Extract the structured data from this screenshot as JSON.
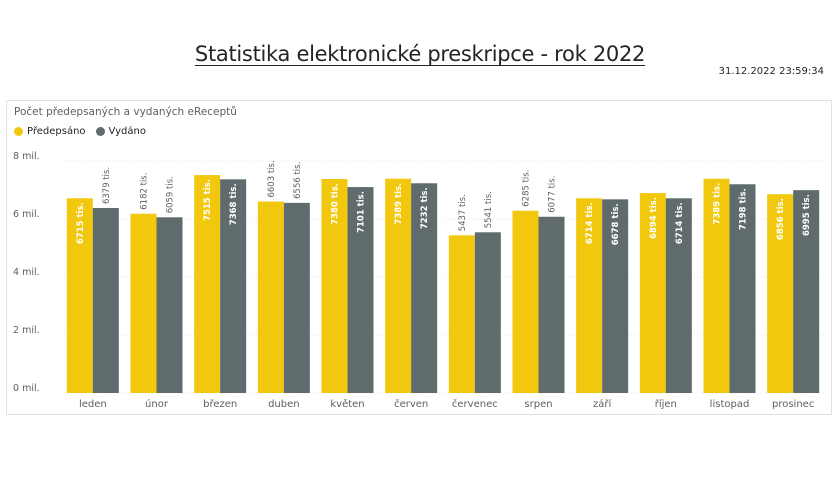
{
  "page": {
    "title": "Statistika elektronické preskripce - rok 2022",
    "timestamp": "31.12.2022 23:59:34"
  },
  "chart_data": {
    "type": "bar",
    "title": "Počet předepsaných a vydaných eReceptů",
    "categories": [
      "leden",
      "únor",
      "březen",
      "duben",
      "květen",
      "červen",
      "červenec",
      "srpen",
      "září",
      "říjen",
      "listopad",
      "prosinec"
    ],
    "series": [
      {
        "name": "Předepsáno",
        "color": "#F2C80F",
        "values": [
          6715,
          6182,
          7515,
          6603,
          7380,
          7389,
          5437,
          6285,
          6714,
          6894,
          7389,
          6856
        ],
        "labels": [
          "6715 tis.",
          "6182 tis.",
          "7515 tis.",
          "6603 tis.",
          "7380 tis.",
          "7389 tis.",
          "5437 tis.",
          "6285 tis.",
          "6714 tis.",
          "6894 tis.",
          "7389 tis.",
          "6856 tis."
        ]
      },
      {
        "name": "Vydáno",
        "color": "#5F6B6D",
        "values": [
          6379,
          6059,
          7368,
          6556,
          7101,
          7232,
          5541,
          6077,
          6678,
          6714,
          7198,
          6995
        ],
        "labels": [
          "6379 tis.",
          "6059 tis.",
          "7368 tis.",
          "6556 tis.",
          "7101 tis.",
          "7232 tis.",
          "5541 tis.",
          "6077 tis.",
          "6678 tis.",
          "6714 tis.",
          "7198 tis.",
          "6995 tis."
        ]
      }
    ],
    "y_ticks": [
      0,
      2000,
      4000,
      6000,
      8000
    ],
    "y_tick_labels": [
      "0 mil.",
      "2 mil.",
      "4 mil.",
      "6 mil.",
      "8 mil."
    ],
    "ylim": [
      0,
      8000
    ],
    "legend_position": "top-left",
    "grid": true
  }
}
